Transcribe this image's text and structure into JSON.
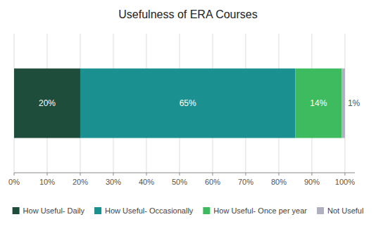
{
  "chart_data": {
    "type": "bar",
    "orientation": "horizontal",
    "stacked": true,
    "title": "Usefulness of ERA Courses",
    "categories": [
      null
    ],
    "series": [
      {
        "name": "How Useful- Daily",
        "color": "#1e4d3b",
        "values": [
          20
        ],
        "value_labels": [
          "20%"
        ]
      },
      {
        "name": "How Useful- Occasionally",
        "color": "#1a9090",
        "values": [
          65
        ],
        "value_labels": [
          "65%"
        ]
      },
      {
        "name": "How Useful- Once per year",
        "color": "#3dbb5e",
        "values": [
          14
        ],
        "value_labels": [
          "14%"
        ]
      },
      {
        "name": "Not Useful",
        "color": "#b0afc0",
        "values": [
          1
        ],
        "value_labels": [
          "1%"
        ]
      }
    ],
    "xlim": [
      0,
      103
    ],
    "xticks": [
      {
        "value": 0,
        "label": "0%"
      },
      {
        "value": 10,
        "label": "10%"
      },
      {
        "value": 20,
        "label": "20%"
      },
      {
        "value": 30,
        "label": "30%"
      },
      {
        "value": 40,
        "label": "40%"
      },
      {
        "value": 50,
        "label": "50%"
      },
      {
        "value": 60,
        "label": "60%"
      },
      {
        "value": 70,
        "label": "70%"
      },
      {
        "value": 80,
        "label": "80%"
      },
      {
        "value": 90,
        "label": "90%"
      },
      {
        "value": 100,
        "label": "100%"
      }
    ],
    "grid": true,
    "data_labels": true,
    "legend": "bottom",
    "tick_labels": "x"
  }
}
